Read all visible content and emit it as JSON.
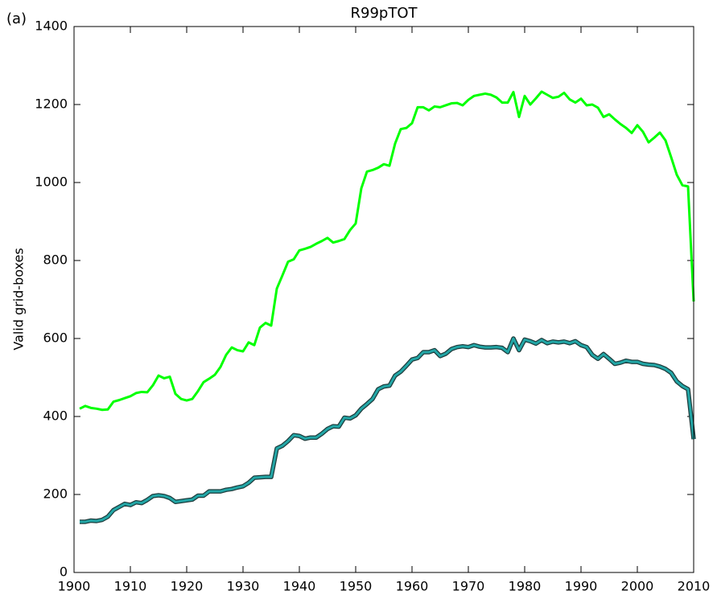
{
  "chart_data": {
    "type": "line",
    "title": "R99pTOT",
    "panel_label": "(a)",
    "ylabel": "Valid grid-boxes",
    "x": [
      1901,
      1902,
      1903,
      1904,
      1905,
      1906,
      1907,
      1908,
      1909,
      1910,
      1911,
      1912,
      1913,
      1914,
      1915,
      1916,
      1917,
      1918,
      1919,
      1920,
      1921,
      1922,
      1923,
      1924,
      1925,
      1926,
      1927,
      1928,
      1929,
      1930,
      1931,
      1932,
      1933,
      1934,
      1935,
      1936,
      1937,
      1938,
      1939,
      1940,
      1941,
      1942,
      1943,
      1944,
      1945,
      1946,
      1947,
      1948,
      1949,
      1950,
      1951,
      1952,
      1953,
      1954,
      1955,
      1956,
      1957,
      1958,
      1959,
      1960,
      1961,
      1962,
      1963,
      1964,
      1965,
      1966,
      1967,
      1968,
      1969,
      1970,
      1971,
      1972,
      1973,
      1974,
      1975,
      1976,
      1977,
      1978,
      1979,
      1980,
      1981,
      1982,
      1983,
      1984,
      1985,
      1986,
      1987,
      1988,
      1989,
      1990,
      1991,
      1992,
      1993,
      1994,
      1995,
      1996,
      1997,
      1998,
      1999,
      2000,
      2001,
      2002,
      2003,
      2004,
      2005,
      2006,
      2007,
      2008,
      2009,
      2010
    ],
    "series": [
      {
        "color": "#00ff00",
        "values": [
          420,
          427,
          422,
          420,
          417,
          418,
          438,
          442,
          447,
          452,
          460,
          463,
          462,
          480,
          505,
          498,
          502,
          458,
          445,
          441,
          445,
          465,
          488,
          497,
          507,
          527,
          558,
          577,
          570,
          567,
          590,
          583,
          628,
          640,
          633,
          728,
          762,
          797,
          803,
          826,
          830,
          835,
          843,
          850,
          858,
          846,
          850,
          855,
          878,
          895,
          985,
          1028,
          1032,
          1038,
          1047,
          1043,
          1100,
          1137,
          1140,
          1152,
          1193,
          1193,
          1185,
          1195,
          1193,
          1198,
          1203,
          1204,
          1198,
          1212,
          1222,
          1225,
          1228,
          1225,
          1218,
          1205,
          1205,
          1232,
          1168,
          1222,
          1200,
          1216,
          1233,
          1225,
          1217,
          1220,
          1230,
          1213,
          1205,
          1215,
          1198,
          1200,
          1192,
          1168,
          1175,
          1162,
          1150,
          1140,
          1127,
          1147,
          1130,
          1103,
          1115,
          1128,
          1108,
          1065,
          1020,
          993,
          990,
          695
        ]
      },
      {
        "color": "#22a6a6",
        "edgecolor": "#1e3c3c",
        "values": [
          130,
          130,
          133,
          132,
          135,
          143,
          160,
          168,
          176,
          173,
          180,
          178,
          186,
          196,
          198,
          196,
          191,
          181,
          183,
          185,
          187,
          197,
          197,
          208,
          208,
          208,
          212,
          214,
          218,
          221,
          230,
          243,
          244,
          245,
          245,
          318,
          325,
          337,
          352,
          350,
          343,
          346,
          346,
          356,
          368,
          375,
          374,
          397,
          395,
          403,
          420,
          432,
          445,
          470,
          477,
          479,
          505,
          515,
          530,
          546,
          550,
          565,
          565,
          570,
          555,
          561,
          573,
          578,
          580,
          578,
          583,
          579,
          577,
          577,
          578,
          576,
          565,
          600,
          570,
          597,
          593,
          587,
          596,
          588,
          592,
          590,
          592,
          588,
          593,
          583,
          578,
          558,
          548,
          560,
          548,
          535,
          538,
          543,
          540,
          540,
          535,
          533,
          532,
          528,
          522,
          512,
          490,
          478,
          470,
          342
        ]
      }
    ],
    "xlim": [
      1900,
      2010
    ],
    "xticks": [
      1900,
      1910,
      1920,
      1930,
      1940,
      1950,
      1960,
      1970,
      1980,
      1990,
      2000,
      2010
    ],
    "ylim": [
      0,
      1400
    ],
    "yticks": [
      0,
      200,
      400,
      600,
      800,
      1000,
      1200,
      1400
    ],
    "grid": false
  }
}
